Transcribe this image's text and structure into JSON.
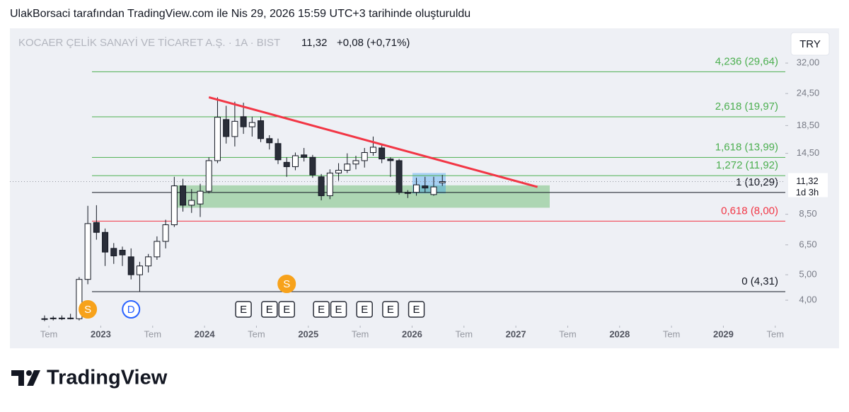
{
  "header": {
    "attribution": "UlakBorsaci tarafından TradingView.com ile Nis 29, 2026 15:59 UTC+3 tarihinde oluşturuldu"
  },
  "footer": {
    "logo": "TradingView"
  },
  "chart_data": {
    "type": "candlestick",
    "title": "KOCAER ÇELİK SANAYİ VE TİCARET A.Ş. · 1A · BIST",
    "change": "+0,08 (+0,71%)",
    "currency": "TRY",
    "last_price": {
      "value": 11.32,
      "label": "11,32"
    },
    "countdown": "1d 3h",
    "log_scale": true,
    "up_color": "#ffffff",
    "down_color": "#2a2e39",
    "x": [
      "2022-06",
      "2022-07",
      "2022-08",
      "2022-09",
      "2022-10",
      "2022-11",
      "2022-12",
      "2023-01",
      "2023-02",
      "2023-03",
      "2023-04",
      "2023-05",
      "2023-06",
      "2023-07",
      "2023-08",
      "2023-09",
      "2023-10",
      "2023-11",
      "2023-12",
      "2024-01",
      "2024-02",
      "2024-03",
      "2024-04",
      "2024-05",
      "2024-06",
      "2024-07",
      "2024-08",
      "2024-09",
      "2024-10",
      "2024-11",
      "2024-12",
      "2025-01",
      "2025-02",
      "2025-03",
      "2025-04",
      "2025-05",
      "2025-06",
      "2025-07",
      "2025-08",
      "2025-09",
      "2025-10",
      "2025-11",
      "2025-12",
      "2026-01",
      "2026-02",
      "2026-03",
      "2026-04"
    ],
    "open": [
      3.4,
      3.4,
      3.42,
      3.42,
      3.4,
      4.8,
      7.9,
      7.25,
      6.3,
      6.2,
      5.85,
      5.0,
      5.4,
      5.85,
      6.7,
      7.75,
      10.9,
      9.2,
      9.3,
      10.4,
      13.6,
      19.5,
      16.8,
      20,
      18.3,
      19.3,
      16.5,
      15.8,
      13.4,
      12.9,
      14.3,
      14,
      11.8,
      10.0,
      12.2,
      12.5,
      13.2,
      13.6,
      14.6,
      15.2,
      13.8,
      13.6,
      10.3,
      10.3,
      10.9,
      10.1,
      11.2
    ],
    "high": [
      3.5,
      3.48,
      3.5,
      3.55,
      4.9,
      9.15,
      9.2,
      7.5,
      6.6,
      6.4,
      6.3,
      5.6,
      6.0,
      7.0,
      8.1,
      11.8,
      11.6,
      10.6,
      11.1,
      14.0,
      23.7,
      22,
      22.8,
      22.6,
      20,
      20,
      17,
      16.5,
      14,
      14.6,
      15.2,
      14.3,
      12.1,
      12.6,
      13.3,
      14.5,
      14.2,
      15.2,
      16.8,
      15.6,
      14,
      13.8,
      10.5,
      11.7,
      11.8,
      11.8,
      12.0
    ],
    "low": [
      3.33,
      3.35,
      3.36,
      3.38,
      3.35,
      4.6,
      6.8,
      5.4,
      5.5,
      5.4,
      4.8,
      4.3,
      5.1,
      5.7,
      6.3,
      7.6,
      8.7,
      8.6,
      8.3,
      10.2,
      13.3,
      15.8,
      15.4,
      17.2,
      16.8,
      16,
      15,
      13.2,
      11.8,
      12.5,
      13.5,
      11.7,
      9.6,
      9.7,
      11.4,
      12.2,
      12.6,
      12.8,
      14.2,
      13.3,
      11.8,
      10.1,
      9.8,
      10.0,
      10.3,
      10.0,
      10.9
    ],
    "close": [
      3.4,
      3.42,
      3.42,
      3.4,
      4.8,
      7.83,
      7.25,
      6.1,
      5.9,
      5.95,
      5.0,
      5.4,
      5.85,
      6.7,
      7.75,
      10.9,
      9.2,
      9.6,
      10.4,
      13.6,
      19.9,
      16.8,
      19.2,
      18.3,
      19,
      16.5,
      15.9,
      13.7,
      12.9,
      14.2,
      14.0,
      12.0,
      10.0,
      12.2,
      12.5,
      13.2,
      13.6,
      14.6,
      15.3,
      13.8,
      13.6,
      10.3,
      10.2,
      11.0,
      10.7,
      10.8,
      11.32
    ],
    "xlim": [
      "2022-02",
      "2029-08"
    ],
    "xticks": [
      {
        "value": "2022-07",
        "label": "Tem"
      },
      {
        "value": "2023-01",
        "label": "2023"
      },
      {
        "value": "2023-07",
        "label": "Tem"
      },
      {
        "value": "2024-01",
        "label": "2024"
      },
      {
        "value": "2024-07",
        "label": "Tem"
      },
      {
        "value": "2025-01",
        "label": "2025"
      },
      {
        "value": "2025-07",
        "label": "Tem"
      },
      {
        "value": "2026-01",
        "label": "2026"
      },
      {
        "value": "2026-07",
        "label": "Tem"
      },
      {
        "value": "2027-01",
        "label": "2027"
      },
      {
        "value": "2027-07",
        "label": "Tem"
      },
      {
        "value": "2028-01",
        "label": "2028"
      },
      {
        "value": "2028-07",
        "label": "Tem"
      },
      {
        "value": "2029-01",
        "label": "2029"
      },
      {
        "value": "2029-07",
        "label": "Tem"
      }
    ],
    "ylim": [
      3.2,
      43.4
    ],
    "yticks": [
      {
        "value": 32,
        "label": "32,00"
      },
      {
        "value": 24.5,
        "label": "24,50"
      },
      {
        "value": 18.5,
        "label": "18,50"
      },
      {
        "value": 14.5,
        "label": "14,50"
      },
      {
        "value": 8.5,
        "label": "8,50"
      },
      {
        "value": 6.5,
        "label": "6,50"
      },
      {
        "value": 5,
        "label": "5,00"
      },
      {
        "value": 4,
        "label": "4,00"
      }
    ],
    "fib_levels": [
      {
        "label": "4,236 (29,64)",
        "value": 29.64,
        "color": "#4caf50"
      },
      {
        "label": "2,618 (19,97)",
        "value": 19.97,
        "color": "#4caf50"
      },
      {
        "label": "1,618 (13,99)",
        "value": 13.99,
        "color": "#4caf50"
      },
      {
        "label": "1,272 (11,92)",
        "value": 11.92,
        "color": "#4caf50"
      },
      {
        "label": "1 (10,29)",
        "value": 10.29,
        "color": "#131722"
      },
      {
        "label": "0,618 (8,00)",
        "value": 8.0,
        "color": "#f23645"
      },
      {
        "label": "0 (4,31)",
        "value": 4.31,
        "color": "#131722"
      }
    ],
    "zone": {
      "low": 9.0,
      "high": 10.95,
      "color": "#4caf50"
    },
    "box": {
      "low": 10.2,
      "high": 12.2,
      "color": "#2196f3"
    },
    "trendline": {
      "x": [
        "2024-01",
        "2027-03"
      ],
      "y": [
        23.7,
        10.8
      ],
      "color": "#f23645"
    },
    "events": [
      {
        "x": "2022-11",
        "label": "S"
      },
      {
        "x": "2023-04",
        "label": "D"
      },
      {
        "x": "2024-05",
        "label": "E"
      },
      {
        "x": "2024-08",
        "label": "E"
      },
      {
        "x": "2024-10",
        "label": "E"
      },
      {
        "x": "2024-10",
        "label": "S"
      },
      {
        "x": "2025-02",
        "label": "E"
      },
      {
        "x": "2025-04",
        "label": "E"
      },
      {
        "x": "2025-07",
        "label": "E"
      },
      {
        "x": "2025-10",
        "label": "E"
      },
      {
        "x": "2026-01",
        "label": "E"
      }
    ]
  }
}
